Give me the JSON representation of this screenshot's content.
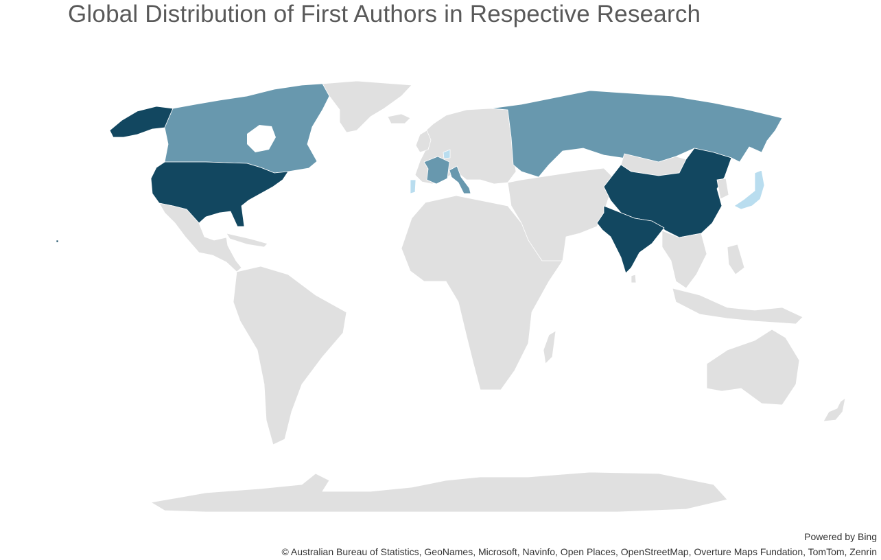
{
  "map": {
    "title": "Global Distribution of First Authors in Respective Research",
    "powered_by": "Powered by Bing",
    "copyright": "© Australian Bureau of Statistics, GeoNames, Microsoft, Navinfo, Open Places, OpenStreetMap, Overture Maps Fundation, TomTom, Zenrin"
  },
  "colors": {
    "no_data": "#e0e0e0",
    "high": "#124760",
    "mid": "#6898ae",
    "low": "#b9ddef",
    "border": "#ffffff"
  },
  "regions": [
    {
      "id": "united-states",
      "level": "high"
    },
    {
      "id": "china",
      "level": "high"
    },
    {
      "id": "india",
      "level": "high"
    },
    {
      "id": "canada",
      "level": "mid"
    },
    {
      "id": "russia",
      "level": "mid"
    },
    {
      "id": "france",
      "level": "mid"
    },
    {
      "id": "italy",
      "level": "mid"
    },
    {
      "id": "japan",
      "level": "low"
    },
    {
      "id": "portugal",
      "level": "low"
    },
    {
      "id": "netherlands",
      "level": "low"
    }
  ]
}
